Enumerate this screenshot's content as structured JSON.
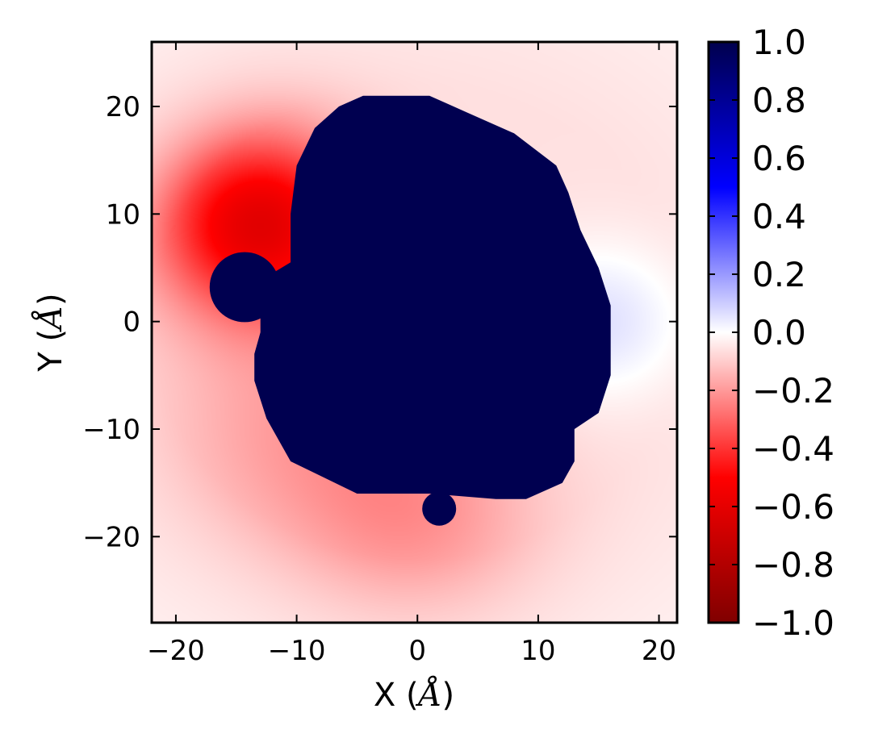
{
  "chart_data": {
    "type": "heatmap",
    "title": "",
    "xlabel": "X",
    "ylabel": "Y",
    "axis_unit": "Å",
    "xlim": [
      -22,
      21.5
    ],
    "ylim": [
      -28,
      26
    ],
    "xticks": [
      -20,
      -10,
      0,
      10,
      20
    ],
    "yticks": [
      -20,
      -10,
      0,
      10,
      20
    ],
    "xtick_labels": [
      "−20",
      "−10",
      "0",
      "10",
      "20"
    ],
    "ytick_labels": [
      "−20",
      "−10",
      "0",
      "10",
      "20"
    ],
    "grid": false,
    "colormap": "seismic",
    "clim": [
      -1.0,
      1.0
    ],
    "colorbar": {
      "ticks": [
        1.0,
        0.8,
        0.6,
        0.4,
        0.2,
        0.0,
        -0.2,
        -0.4,
        -0.6,
        -0.8,
        -1.0
      ],
      "tick_labels": [
        "1.0",
        "0.8",
        "0.6",
        "0.4",
        "0.2",
        "0.0",
        "−0.2",
        "−0.4",
        "−0.6",
        "−0.8",
        "−1.0"
      ],
      "colors": [
        "#00004d",
        "#0000ff",
        "#ffffff",
        "#ff0000",
        "#800000"
      ]
    },
    "field": {
      "background_value": -0.06,
      "hotspots": [
        {
          "x": -13,
          "y": 9,
          "value": -0.55,
          "spread": 6
        },
        {
          "x": -10,
          "y": -10,
          "value": -0.12,
          "spread": 8
        },
        {
          "x": 0,
          "y": -18,
          "value": -0.14,
          "spread": 7
        },
        {
          "x": 15,
          "y": 0,
          "value": 0.12,
          "spread": 5
        }
      ]
    },
    "masked_region": {
      "value": 1.0,
      "color": "#000050",
      "main_outline": [
        [
          -4.5,
          21
        ],
        [
          1,
          21
        ],
        [
          4,
          19.5
        ],
        [
          8,
          17.5
        ],
        [
          11.5,
          14.5
        ],
        [
          12.5,
          12
        ],
        [
          13.5,
          8.5
        ],
        [
          15,
          5
        ],
        [
          16,
          1.5
        ],
        [
          16,
          -5
        ],
        [
          15,
          -8.5
        ],
        [
          13,
          -10
        ],
        [
          13,
          -13
        ],
        [
          12,
          -15
        ],
        [
          9,
          -16.5
        ],
        [
          6.5,
          -16.5
        ],
        [
          1,
          -16
        ],
        [
          -5,
          -16
        ],
        [
          -10.5,
          -13
        ],
        [
          -12.5,
          -9
        ],
        [
          -13.5,
          -5.5
        ],
        [
          -13.5,
          -3
        ],
        [
          -13,
          -1
        ],
        [
          -13,
          1
        ],
        [
          -12,
          4.5
        ],
        [
          -10.5,
          5.5
        ],
        [
          -10.5,
          10
        ],
        [
          -10,
          14.5
        ],
        [
          -8.5,
          18
        ],
        [
          -6.5,
          20
        ]
      ],
      "blobs": [
        {
          "x": -14.3,
          "y": 3.2,
          "r": 2.9
        },
        {
          "x": 1.8,
          "y": -17.4,
          "r": 1.4
        }
      ]
    }
  }
}
